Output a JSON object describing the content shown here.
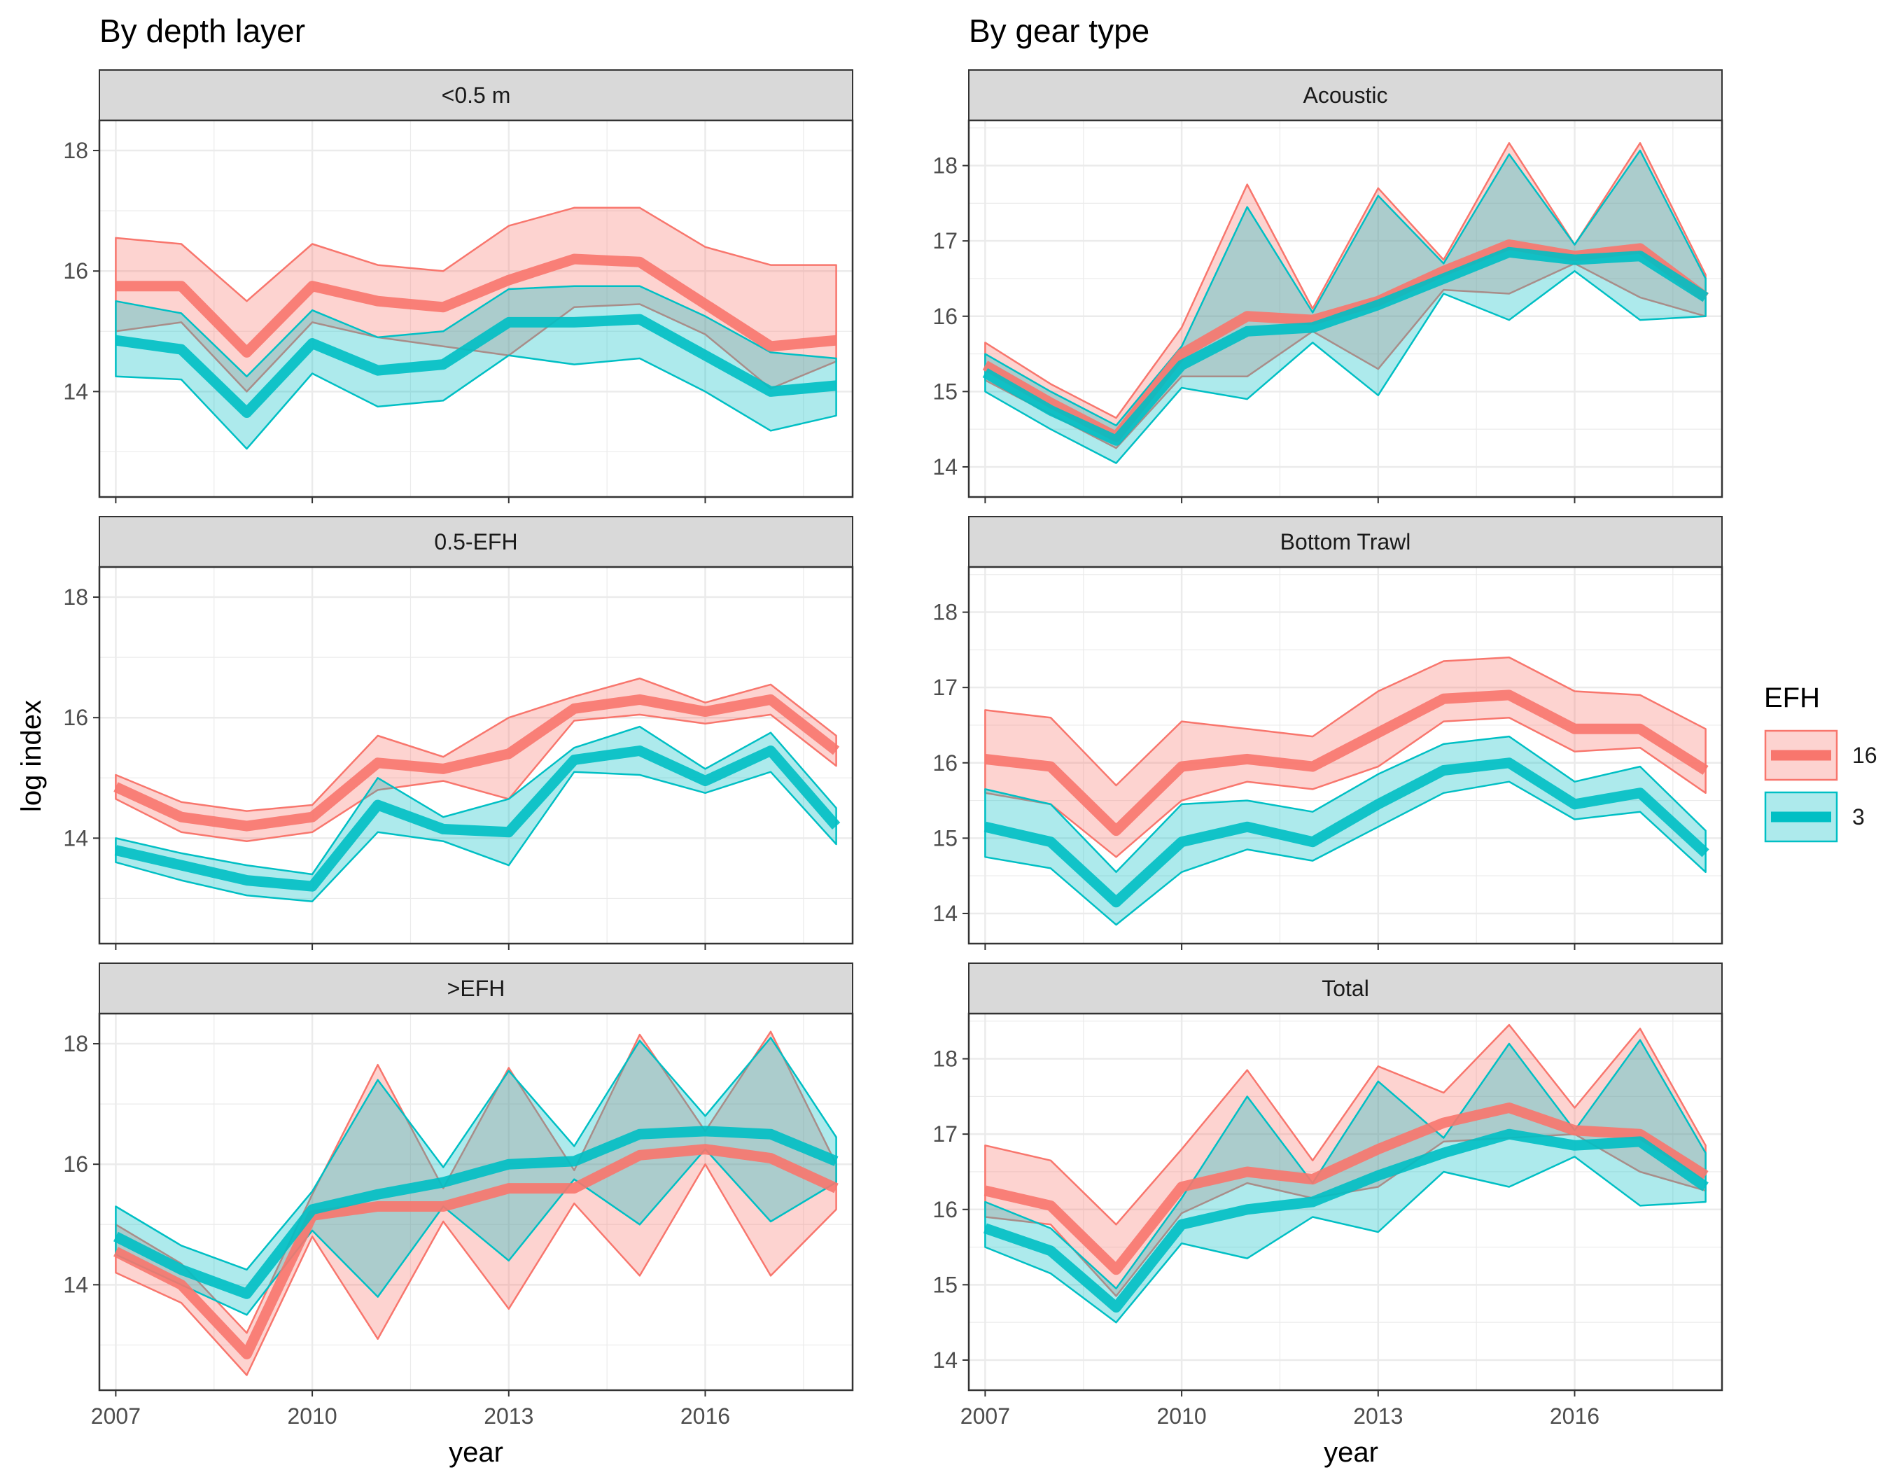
{
  "figure": {
    "left_title": "By depth layer",
    "right_title": "By gear type",
    "x_label": "year",
    "y_label": "log index",
    "legend_title": "EFH"
  },
  "colors": {
    "efh16": "#F8766D",
    "efh3": "#00BFC4",
    "strip_bg": "#D9D9D9",
    "grid": "#EBEBEB",
    "axis_text": "#4D4D4D"
  },
  "chart_data": {
    "type": "line",
    "facet": "panels",
    "xlim": [
      2006.75,
      2018.25
    ],
    "x_ticks": [
      2007,
      2010,
      2013,
      2016
    ],
    "grid": "on",
    "legend": {
      "title": "EFH",
      "placement": "right",
      "entries": [
        {
          "label": "16",
          "color": "#F8766D"
        },
        {
          "label": "3",
          "color": "#00BFC4"
        }
      ]
    },
    "years": [
      2007,
      2008,
      2009,
      2010,
      2011,
      2012,
      2013,
      2014,
      2015,
      2016,
      2017,
      2018
    ],
    "panels": [
      {
        "title": "<0.5 m",
        "column": "By depth layer",
        "ylim": [
          12.25,
          18.5
        ],
        "y_ticks": [
          14,
          16,
          18
        ],
        "series": [
          {
            "name": "16",
            "mean": [
              15.75,
              15.75,
              14.65,
              15.75,
              15.5,
              15.4,
              15.85,
              16.2,
              16.15,
              15.45,
              14.75,
              14.85
            ],
            "lower": [
              15.0,
              15.15,
              14.0,
              15.15,
              14.9,
              14.75,
              14.6,
              15.4,
              15.45,
              14.95,
              14.05,
              14.5
            ],
            "upper": [
              16.55,
              16.45,
              15.5,
              16.45,
              16.1,
              16.0,
              16.75,
              17.05,
              17.05,
              16.4,
              16.1,
              16.1
            ]
          },
          {
            "name": "3",
            "mean": [
              14.85,
              14.7,
              13.65,
              14.8,
              14.35,
              14.45,
              15.15,
              15.15,
              15.2,
              14.6,
              14.0,
              14.1
            ],
            "lower": [
              14.25,
              14.2,
              13.05,
              14.3,
              13.75,
              13.85,
              14.6,
              14.45,
              14.55,
              14.0,
              13.35,
              13.6
            ],
            "upper": [
              15.5,
              15.3,
              14.25,
              15.35,
              14.9,
              15.0,
              15.7,
              15.75,
              15.75,
              15.25,
              14.65,
              14.55
            ]
          }
        ]
      },
      {
        "title": "Acoustic",
        "column": "By gear type",
        "ylim": [
          13.6,
          18.6
        ],
        "y_ticks": [
          14,
          15,
          16,
          17,
          18
        ],
        "series": [
          {
            "name": "16",
            "mean": [
              15.35,
              14.85,
              14.4,
              15.5,
              16.0,
              15.95,
              16.2,
              16.6,
              16.95,
              16.8,
              16.9,
              16.25
            ],
            "lower": [
              15.15,
              14.7,
              14.25,
              15.2,
              15.2,
              15.8,
              15.3,
              16.35,
              16.3,
              16.7,
              16.25,
              16.0
            ],
            "upper": [
              15.65,
              15.1,
              14.65,
              15.85,
              17.75,
              16.1,
              17.7,
              16.75,
              18.3,
              16.95,
              18.3,
              16.55
            ]
          },
          {
            "name": "3",
            "mean": [
              15.25,
              14.75,
              14.35,
              15.35,
              15.8,
              15.85,
              16.15,
              16.5,
              16.85,
              16.75,
              16.8,
              16.25
            ],
            "lower": [
              15.0,
              14.5,
              14.05,
              15.05,
              14.9,
              15.65,
              14.95,
              16.3,
              15.95,
              16.6,
              15.95,
              16.0
            ],
            "upper": [
              15.5,
              15.0,
              14.55,
              15.6,
              17.45,
              16.05,
              17.6,
              16.7,
              18.15,
              16.95,
              18.2,
              16.5
            ]
          }
        ]
      },
      {
        "title": "0.5-EFH",
        "column": "By depth layer",
        "ylim": [
          12.25,
          18.5
        ],
        "y_ticks": [
          14,
          16,
          18
        ],
        "series": [
          {
            "name": "16",
            "mean": [
              14.85,
              14.35,
              14.2,
              14.35,
              15.25,
              15.15,
              15.4,
              16.15,
              16.3,
              16.1,
              16.3,
              15.45
            ],
            "lower": [
              14.65,
              14.1,
              13.95,
              14.1,
              14.8,
              14.95,
              14.65,
              15.95,
              16.05,
              15.9,
              16.05,
              15.2
            ],
            "upper": [
              15.05,
              14.6,
              14.45,
              14.55,
              15.7,
              15.35,
              16.0,
              16.35,
              16.65,
              16.25,
              16.55,
              15.7
            ]
          },
          {
            "name": "3",
            "mean": [
              13.8,
              13.55,
              13.3,
              13.2,
              14.55,
              14.15,
              14.1,
              15.3,
              15.45,
              14.95,
              15.45,
              14.2
            ]
          },
          {
            "name": "3",
            "lower": [
              13.6,
              13.3,
              13.05,
              12.95,
              14.1,
              13.95,
              13.55,
              15.1,
              15.05,
              14.75,
              15.1,
              13.9
            ],
            "upper": [
              14.0,
              13.75,
              13.55,
              13.4,
              15.0,
              14.35,
              14.65,
              15.5,
              15.85,
              15.15,
              15.75,
              14.5
            ]
          }
        ]
      },
      {
        "title": "Bottom Trawl",
        "column": "By gear type",
        "ylim": [
          13.6,
          18.6
        ],
        "y_ticks": [
          14,
          15,
          16,
          17,
          18
        ],
        "series": [
          {
            "name": "16",
            "mean": [
              16.05,
              15.95,
              15.1,
              15.95,
              16.05,
              15.95,
              16.4,
              16.85,
              16.9,
              16.45,
              16.45,
              15.9
            ],
            "lower": [
              15.6,
              15.45,
              14.75,
              15.5,
              15.75,
              15.65,
              15.95,
              16.55,
              16.6,
              16.15,
              16.2,
              15.6
            ],
            "upper": [
              16.7,
              16.6,
              15.7,
              16.55,
              16.45,
              16.35,
              16.95,
              17.35,
              17.4,
              16.95,
              16.9,
              16.45
            ]
          },
          {
            "name": "3",
            "mean": [
              15.15,
              14.95,
              14.15,
              14.95,
              15.15,
              14.95,
              15.45,
              15.9,
              16.0,
              15.45,
              15.6,
              14.8
            ],
            "lower": [
              14.75,
              14.6,
              13.85,
              14.55,
              14.85,
              14.7,
              15.15,
              15.6,
              15.75,
              15.25,
              15.35,
              14.55
            ],
            "upper": [
              15.65,
              15.45,
              14.55,
              15.45,
              15.5,
              15.35,
              15.85,
              16.25,
              16.35,
              15.75,
              15.95,
              15.1
            ]
          }
        ]
      },
      {
        "title": ">EFH",
        "column": "By depth layer",
        "ylim": [
          12.25,
          18.5
        ],
        "y_ticks": [
          14,
          16,
          18
        ],
        "series": [
          {
            "name": "16",
            "mean": [
              14.55,
              14.0,
              12.85,
              15.15,
              15.3,
              15.3,
              15.6,
              15.6,
              16.15,
              16.25,
              16.1,
              15.6
            ],
            "lower": [
              14.2,
              13.7,
              12.5,
              14.8,
              13.1,
              15.05,
              13.6,
              15.35,
              14.15,
              16.0,
              14.15,
              15.25
            ],
            "upper": [
              15.0,
              14.35,
              13.2,
              15.5,
              17.65,
              15.6,
              17.6,
              15.9,
              18.15,
              16.55,
              18.2,
              16.0
            ]
          },
          {
            "name": "3",
            "mean": [
              14.8,
              14.25,
              13.85,
              15.25,
              15.5,
              15.7,
              16.0,
              16.05,
              16.5,
              16.55,
              16.5,
              16.05
            ],
            "lower": [
              14.5,
              14.0,
              13.5,
              14.9,
              13.8,
              15.3,
              14.4,
              15.75,
              15.0,
              16.25,
              15.05,
              15.7
            ],
            "upper": [
              15.3,
              14.65,
              14.25,
              15.55,
              17.4,
              15.95,
              17.55,
              16.3,
              18.05,
              16.8,
              18.1,
              16.45
            ]
          }
        ]
      },
      {
        "title": "Total",
        "column": "By gear type",
        "ylim": [
          13.6,
          18.6
        ],
        "y_ticks": [
          14,
          15,
          16,
          17,
          18
        ],
        "series": [
          {
            "name": "16",
            "mean": [
              16.25,
              16.05,
              15.2,
              16.3,
              16.5,
              16.4,
              16.8,
              17.15,
              17.35,
              17.05,
              17.0,
              16.45
            ],
            "lower": [
              15.9,
              15.8,
              14.85,
              15.95,
              16.35,
              16.15,
              16.3,
              16.9,
              16.95,
              17.0,
              16.5,
              16.25
            ],
            "upper": [
              16.85,
              16.65,
              15.8,
              16.8,
              17.85,
              16.65,
              17.9,
              17.55,
              18.45,
              17.35,
              18.4,
              16.85
            ]
          },
          {
            "name": "3",
            "mean": [
              15.75,
              15.45,
              14.7,
              15.8,
              16.0,
              16.1,
              16.45,
              16.75,
              17.0,
              16.85,
              16.9,
              16.3
            ],
            "lower": [
              15.5,
              15.15,
              14.5,
              15.55,
              15.35,
              15.9,
              15.7,
              16.5,
              16.3,
              16.7,
              16.05,
              16.1
            ],
            "upper": [
              16.1,
              15.75,
              14.95,
              16.15,
              17.5,
              16.35,
              17.7,
              16.95,
              18.2,
              17.05,
              18.25,
              16.75
            ]
          }
        ]
      }
    ]
  }
}
